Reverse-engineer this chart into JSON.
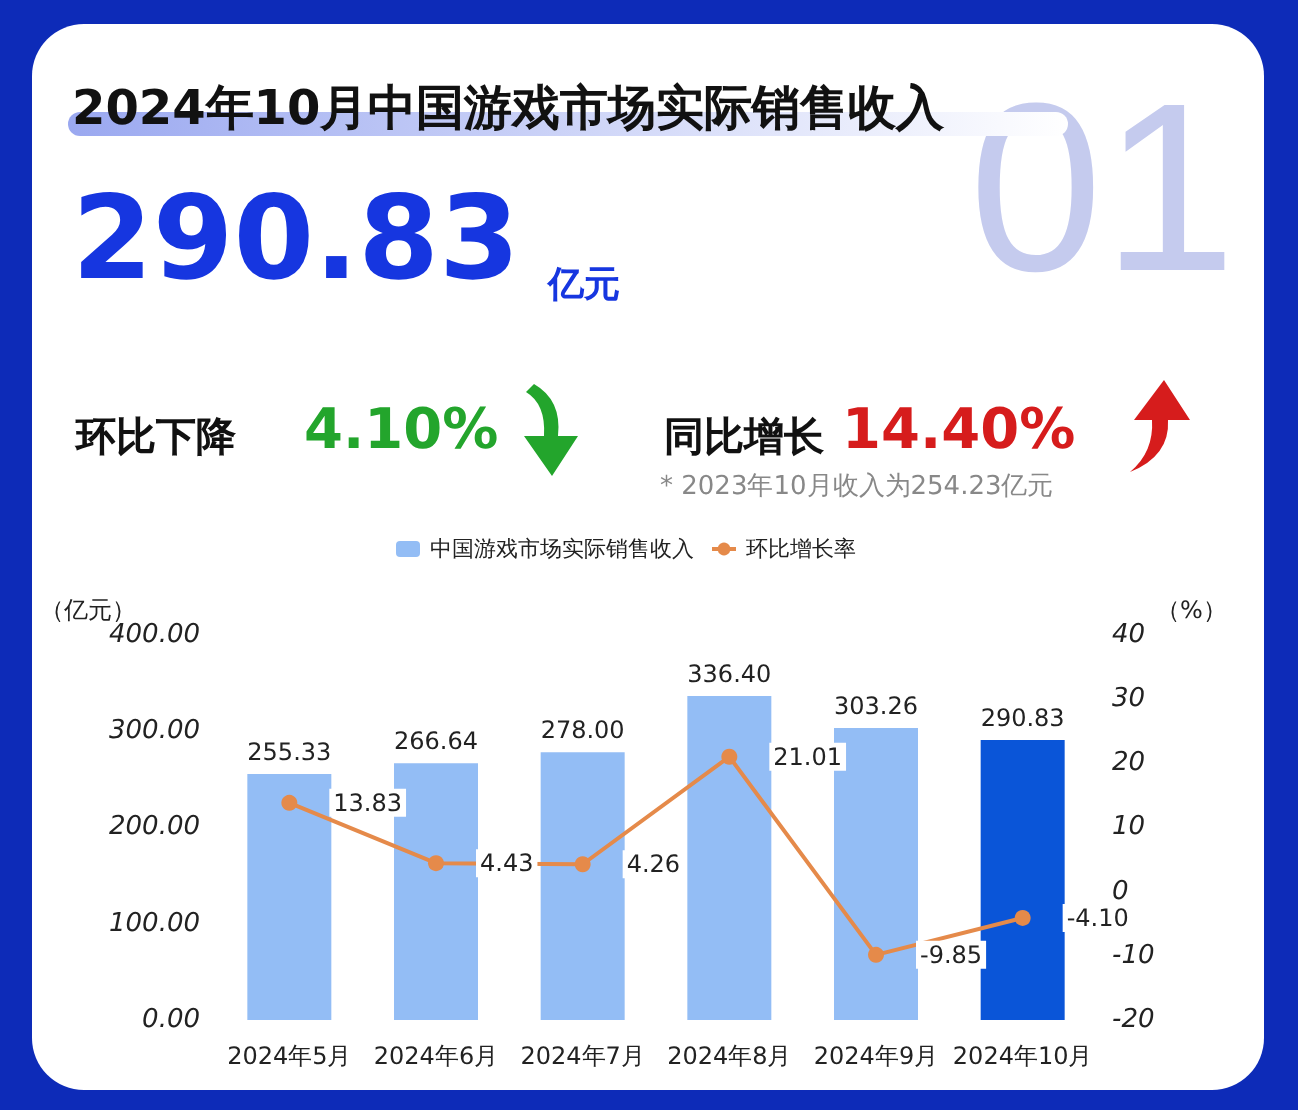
{
  "chart_data": {
    "type": "bar",
    "title": "2024年10月中国游戏市场实际销售收入",
    "annotations": [
      "290.83",
      "亿元",
      "环比下降",
      "4.10%",
      "同比增长",
      "14.40%",
      "* 2023年10月收入为254.23亿元",
      "01"
    ],
    "categories": [
      "2024年5月",
      "2024年6月",
      "2024年7月",
      "2024年8月",
      "2024年9月",
      "2024年10月"
    ],
    "series": [
      {
        "name": "中国游戏市场实际销售收入",
        "colors": [
          "#93bdf5",
          "#93bdf5",
          "#93bdf5",
          "#93bdf5",
          "#93bdf5",
          "#0a55d8"
        ],
        "values": [
          255.33,
          266.64,
          278.0,
          336.4,
          303.26,
          290.83
        ],
        "value_labels": [
          "255.33",
          "266.64",
          "278.00",
          "336.40",
          "303.26",
          "290.83"
        ]
      },
      {
        "name": "环比增长率",
        "type": "line",
        "axis": "y2",
        "color": "#e58a4a",
        "values": [
          13.83,
          4.43,
          4.26,
          21.01,
          -9.85,
          -4.1
        ],
        "value_labels": [
          "13.83",
          "4.43",
          "4.26",
          "21.01",
          "-9.85",
          "-4.10"
        ]
      }
    ],
    "ylabel": "（亿元）",
    "y2label": "（%）",
    "ylim": [
      0,
      400
    ],
    "yticks": [
      {
        "value": 0,
        "label": "0.00"
      },
      {
        "value": 100,
        "label": "100.00"
      },
      {
        "value": 200,
        "label": "200.00"
      },
      {
        "value": 300,
        "label": "300.00"
      },
      {
        "value": 400,
        "label": "400.00"
      }
    ],
    "y2lim": [
      -20,
      40
    ],
    "y2ticks": [
      -20,
      -10,
      0,
      10,
      20,
      30,
      40
    ],
    "legend": "top",
    "grid": false,
    "marker": "circle",
    "line_style": "solid"
  }
}
